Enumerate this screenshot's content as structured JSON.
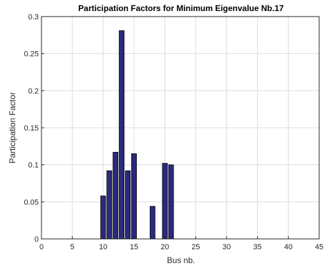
{
  "chart_data": {
    "type": "bar",
    "title": "Participation Factors for Minimum Eigenvalue Nb.17",
    "xlabel": "Bus nb.",
    "ylabel": "Participation Factor",
    "xlim": [
      0,
      45
    ],
    "ylim": [
      0,
      0.3
    ],
    "xticks": [
      "0",
      "5",
      "10",
      "15",
      "20",
      "25",
      "30",
      "35",
      "40",
      "45"
    ],
    "yticks": [
      "0",
      "0.05",
      "0.1",
      "0.15",
      "0.2",
      "0.25",
      "0.3"
    ],
    "grid": true,
    "bar_color": "#2b2a7e",
    "bar_edge_color": "#000000",
    "x": [
      1,
      2,
      3,
      4,
      5,
      6,
      7,
      8,
      9,
      10,
      11,
      12,
      13,
      14,
      15,
      16,
      17,
      18,
      19,
      20,
      21,
      22,
      23,
      24,
      25,
      26,
      27,
      28,
      29,
      30,
      31,
      32,
      33,
      34,
      35,
      36,
      37,
      38,
      39,
      40,
      41,
      42,
      43,
      44,
      45
    ],
    "values": [
      0,
      0,
      0,
      0,
      0,
      0,
      0,
      0,
      0,
      0.058,
      0.092,
      0.117,
      0.281,
      0.092,
      0.115,
      0,
      0,
      0.044,
      0,
      0.102,
      0.1,
      0,
      0,
      0,
      0,
      0,
      0,
      0,
      0,
      0,
      0,
      0,
      0,
      0,
      0,
      0,
      0,
      0,
      0,
      0,
      0,
      0,
      0,
      0,
      0
    ]
  }
}
